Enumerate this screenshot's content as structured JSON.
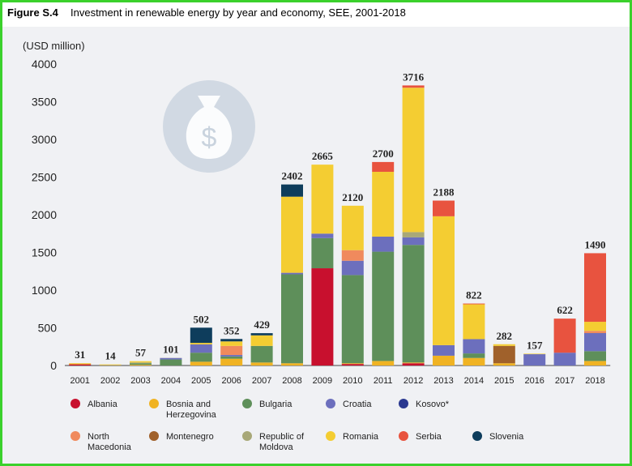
{
  "figure_label": "Figure S.4",
  "figure_title": "Investment in renewable energy by year and economy, SEE, 2001-2018",
  "colors": {
    "frame": "#3bd12c",
    "Albania": "#c8102e",
    "Bosnia and Herzegovina": "#f0b323",
    "Bulgaria": "#5e8f5a",
    "Croatia": "#6c6fbd",
    "Kosovo*": "#2b3990",
    "North Macedonia": "#f08a5d",
    "Montenegro": "#a0612b",
    "Republic of Moldova": "#a8a878",
    "Romania": "#f4cd32",
    "Serbia": "#e8533f",
    "Slovenia": "#0e3d5c"
  },
  "chart_data": {
    "type": "bar",
    "stacked": true,
    "title": "Investment in renewable energy by year and economy, SEE, 2001-2018",
    "ylabel": "(USD million)",
    "xlabel": "",
    "ylim": [
      0,
      4000
    ],
    "yticks": [
      "0",
      "500",
      "1000",
      "1500",
      "2000",
      "2500",
      "3000",
      "3500",
      "4000"
    ],
    "categories": [
      "2001",
      "2002",
      "2003",
      "2004",
      "2005",
      "2006",
      "2007",
      "2008",
      "2009",
      "2010",
      "2011",
      "2012",
      "2013",
      "2014",
      "2015",
      "2016",
      "2017",
      "2018"
    ],
    "totals": [
      31,
      14,
      57,
      101,
      502,
      352,
      429,
      2402,
      2665,
      2120,
      2700,
      3716,
      2188,
      822,
      282,
      157,
      622,
      1490
    ],
    "series": [
      {
        "name": "Albania",
        "values": [
          15,
          0,
          0,
          0,
          0,
          0,
          0,
          0,
          1290,
          20,
          0,
          30,
          0,
          0,
          0,
          0,
          0,
          0
        ]
      },
      {
        "name": "Bosnia and Herzegovina",
        "values": [
          10,
          5,
          10,
          0,
          50,
          90,
          40,
          30,
          0,
          10,
          60,
          10,
          130,
          100,
          30,
          0,
          0,
          60
        ]
      },
      {
        "name": "Bulgaria",
        "values": [
          0,
          0,
          20,
          80,
          120,
          30,
          220,
          1180,
          400,
          1170,
          1450,
          1560,
          0,
          60,
          0,
          0,
          0,
          130
        ]
      },
      {
        "name": "Croatia",
        "values": [
          0,
          0,
          0,
          20,
          110,
          20,
          0,
          20,
          60,
          190,
          200,
          100,
          140,
          190,
          0,
          150,
          170,
          240
        ]
      },
      {
        "name": "Kosovo*",
        "values": [
          0,
          0,
          0,
          0,
          0,
          0,
          0,
          0,
          0,
          0,
          0,
          0,
          0,
          0,
          0,
          0,
          0,
          0
        ]
      },
      {
        "name": "North Macedonia",
        "values": [
          0,
          0,
          0,
          0,
          0,
          120,
          0,
          0,
          0,
          140,
          0,
          0,
          0,
          0,
          0,
          0,
          0,
          30
        ]
      },
      {
        "name": "Montenegro",
        "values": [
          0,
          0,
          0,
          0,
          0,
          0,
          0,
          0,
          0,
          0,
          0,
          0,
          0,
          0,
          230,
          0,
          0,
          0
        ]
      },
      {
        "name": "Republic of Moldova",
        "values": [
          0,
          5,
          10,
          0,
          0,
          0,
          0,
          0,
          0,
          0,
          0,
          70,
          0,
          0,
          0,
          0,
          0,
          0
        ]
      },
      {
        "name": "Romania",
        "values": [
          6,
          4,
          17,
          1,
          20,
          60,
          140,
          1010,
          915,
          590,
          860,
          1916,
          1710,
          462,
          22,
          7,
          0,
          120
        ]
      },
      {
        "name": "Serbia",
        "values": [
          0,
          0,
          0,
          0,
          0,
          0,
          0,
          0,
          0,
          0,
          130,
          30,
          208,
          10,
          0,
          0,
          452,
          910
        ]
      },
      {
        "name": "Slovenia",
        "values": [
          0,
          0,
          0,
          0,
          202,
          32,
          29,
          162,
          0,
          0,
          0,
          0,
          0,
          0,
          0,
          0,
          0,
          0
        ]
      }
    ],
    "legend_order": [
      "Albania",
      "Bosnia and Herzegovina",
      "Bulgaria",
      "Croatia",
      "Kosovo*",
      "North Macedonia",
      "Montenegro",
      "Republic of Moldova",
      "Romania",
      "Serbia",
      "Slovenia"
    ],
    "legend": [
      {
        "name": "Albania",
        "lines": [
          "Albania"
        ]
      },
      {
        "name": "Bosnia and Herzegovina",
        "lines": [
          "Bosnia and",
          "Herzegovina"
        ]
      },
      {
        "name": "Bulgaria",
        "lines": [
          "Bulgaria"
        ]
      },
      {
        "name": "Croatia",
        "lines": [
          "Croatia"
        ]
      },
      {
        "name": "Kosovo*",
        "lines": [
          "Kosovo*"
        ]
      },
      {
        "name": "North Macedonia",
        "lines": [
          "North",
          "Macedonia"
        ]
      },
      {
        "name": "Montenegro",
        "lines": [
          "Montenegro"
        ]
      },
      {
        "name": "Republic of Moldova",
        "lines": [
          "Republic of",
          "Moldova"
        ]
      },
      {
        "name": "Romania",
        "lines": [
          "Romania"
        ]
      },
      {
        "name": "Serbia",
        "lines": [
          "Serbia"
        ]
      },
      {
        "name": "Slovenia",
        "lines": [
          "Slovenia"
        ]
      }
    ],
    "legend_placement": "bottom",
    "grid": false,
    "icon": "money-bag-icon"
  }
}
